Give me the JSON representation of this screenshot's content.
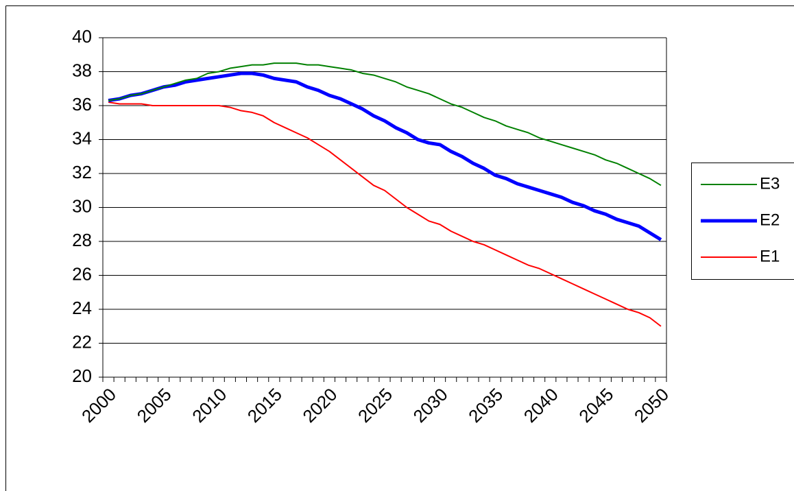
{
  "chart_data": {
    "type": "line",
    "categories": [
      "2000",
      null,
      null,
      null,
      null,
      "2005",
      null,
      null,
      null,
      null,
      "2010",
      null,
      null,
      null,
      null,
      "2015",
      null,
      null,
      null,
      null,
      "2020",
      null,
      null,
      null,
      null,
      "2025",
      null,
      null,
      null,
      null,
      "2030",
      null,
      null,
      null,
      null,
      "2035",
      null,
      null,
      null,
      null,
      "2040",
      null,
      null,
      null,
      null,
      "2045",
      null,
      null,
      null,
      null,
      "2050"
    ],
    "series": [
      {
        "name": "E3",
        "color": "#008000",
        "values": [
          36.3,
          36.4,
          36.6,
          36.7,
          36.9,
          37.1,
          37.3,
          37.5,
          37.6,
          37.9,
          38.0,
          38.2,
          38.3,
          38.4,
          38.4,
          38.5,
          38.5,
          38.5,
          38.4,
          38.4,
          38.3,
          38.2,
          38.1,
          37.9,
          37.8,
          37.6,
          37.4,
          37.1,
          36.9,
          36.7,
          36.4,
          36.1,
          35.9,
          35.6,
          35.3,
          35.1,
          34.8,
          34.6,
          34.4,
          34.1,
          33.9,
          33.7,
          33.5,
          33.3,
          33.1,
          32.8,
          32.6,
          32.3,
          32.0,
          31.7,
          31.3
        ]
      },
      {
        "name": "E2",
        "color": "#0000ff",
        "values": [
          36.3,
          36.4,
          36.6,
          36.7,
          36.9,
          37.1,
          37.2,
          37.4,
          37.5,
          37.6,
          37.7,
          37.8,
          37.9,
          37.9,
          37.8,
          37.6,
          37.5,
          37.4,
          37.1,
          36.9,
          36.6,
          36.4,
          36.1,
          35.8,
          35.4,
          35.1,
          34.7,
          34.4,
          34.0,
          33.8,
          33.7,
          33.3,
          33.0,
          32.6,
          32.3,
          31.9,
          31.7,
          31.4,
          31.2,
          31.0,
          30.8,
          30.6,
          30.3,
          30.1,
          29.8,
          29.6,
          29.3,
          29.1,
          28.9,
          28.5,
          28.1
        ]
      },
      {
        "name": "E1",
        "color": "#ff0000",
        "values": [
          36.2,
          36.1,
          36.1,
          36.1,
          36.0,
          36.0,
          36.0,
          36.0,
          36.0,
          36.0,
          36.0,
          35.9,
          35.7,
          35.6,
          35.4,
          35.0,
          34.7,
          34.4,
          34.1,
          33.7,
          33.3,
          32.8,
          32.3,
          31.8,
          31.3,
          31.0,
          30.5,
          30.0,
          29.6,
          29.2,
          29.0,
          28.6,
          28.3,
          28.0,
          27.8,
          27.5,
          27.2,
          26.9,
          26.6,
          26.4,
          26.1,
          25.8,
          25.5,
          25.2,
          24.9,
          24.6,
          24.3,
          24.0,
          23.8,
          23.5,
          23.0
        ]
      }
    ],
    "ylim": [
      20,
      40
    ],
    "yticks": [
      20,
      22,
      24,
      26,
      28,
      30,
      32,
      34,
      36,
      38,
      40
    ],
    "grid": true,
    "legend": "right"
  }
}
